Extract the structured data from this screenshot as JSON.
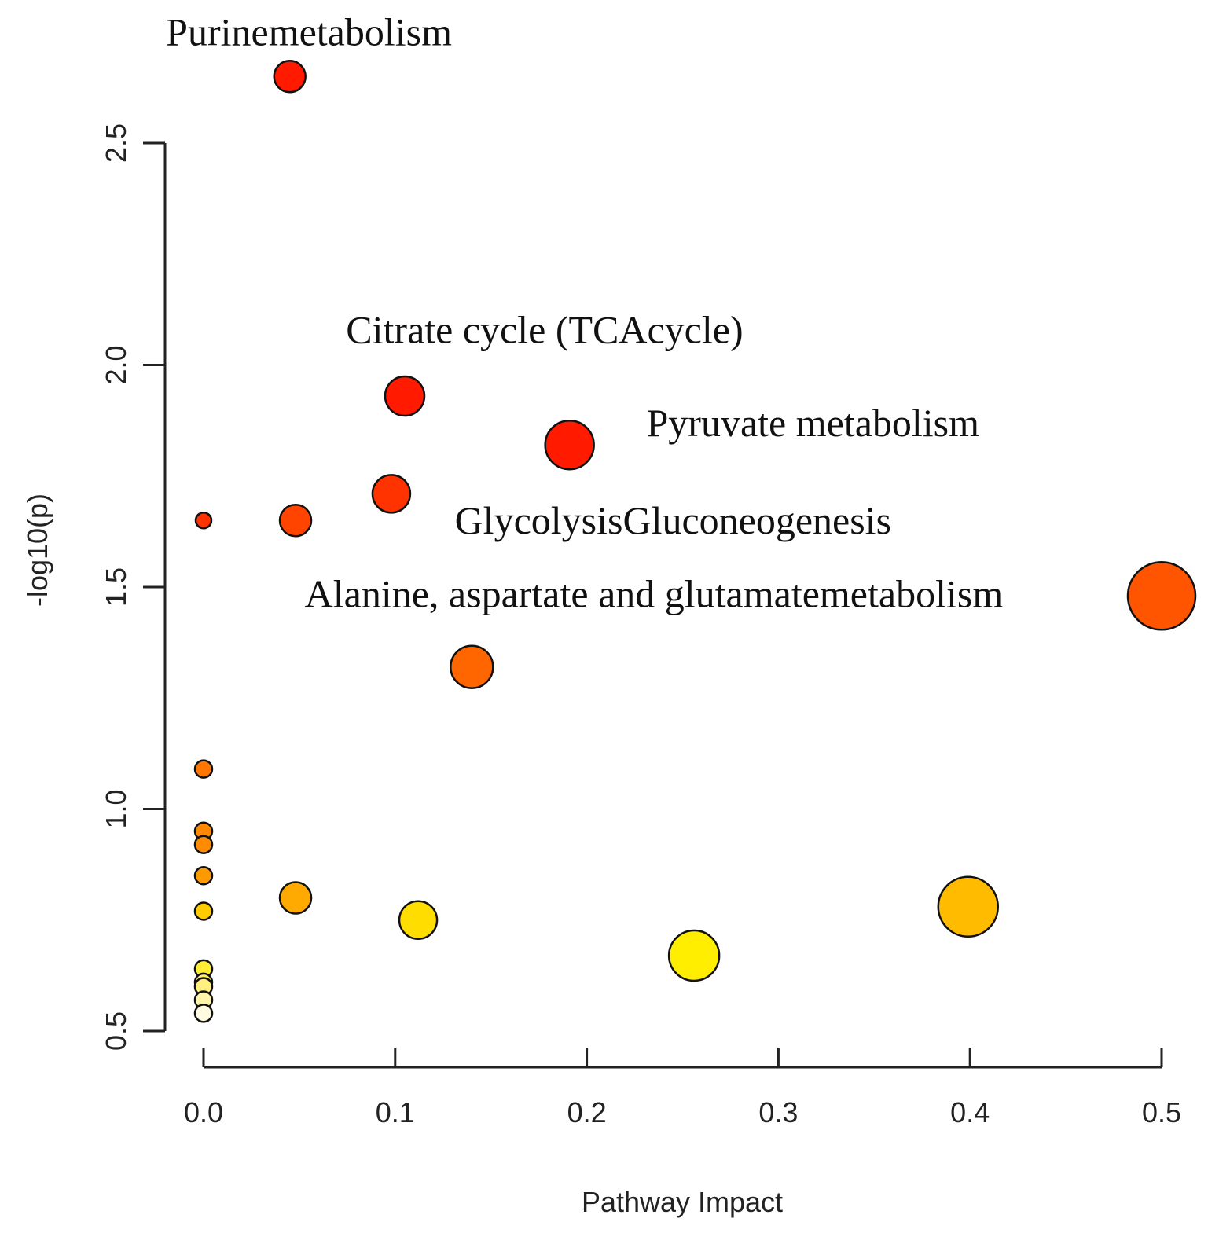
{
  "chart_data": {
    "type": "scatter",
    "title": "",
    "xlabel": "Pathway Impact",
    "ylabel": "-log10(p)",
    "xlim": [
      0.0,
      0.5
    ],
    "ylim": [
      0.5,
      2.5
    ],
    "x_ticks": [
      "0.0",
      "0.1",
      "0.2",
      "0.3",
      "0.4",
      "0.5"
    ],
    "y_ticks": [
      "0.5",
      "1.0",
      "1.5",
      "2.0",
      "2.5"
    ],
    "points": [
      {
        "x": 0.045,
        "y": 2.65,
        "color": "#ff1a00",
        "size": 40
      },
      {
        "x": 0.105,
        "y": 1.93,
        "color": "#ff1a00",
        "size": 50
      },
      {
        "x": 0.191,
        "y": 1.82,
        "color": "#ff1a00",
        "size": 62
      },
      {
        "x": 0.098,
        "y": 1.71,
        "color": "#ff3300",
        "size": 48
      },
      {
        "x": 0.048,
        "y": 1.65,
        "color": "#ff4400",
        "size": 40
      },
      {
        "x": 0.0,
        "y": 1.65,
        "color": "#ff3300",
        "size": 20
      },
      {
        "x": 0.5,
        "y": 1.48,
        "color": "#ff5500",
        "size": 86
      },
      {
        "x": 0.14,
        "y": 1.32,
        "color": "#ff6600",
        "size": 54
      },
      {
        "x": 0.0,
        "y": 1.09,
        "color": "#ff7700",
        "size": 22
      },
      {
        "x": 0.0,
        "y": 0.95,
        "color": "#ff8800",
        "size": 22
      },
      {
        "x": 0.0,
        "y": 0.92,
        "color": "#ff8c00",
        "size": 22
      },
      {
        "x": 0.0,
        "y": 0.85,
        "color": "#ff9900",
        "size": 22
      },
      {
        "x": 0.048,
        "y": 0.8,
        "color": "#ffaa00",
        "size": 40
      },
      {
        "x": 0.399,
        "y": 0.78,
        "color": "#ffbb00",
        "size": 76
      },
      {
        "x": 0.0,
        "y": 0.77,
        "color": "#ffcc00",
        "size": 22
      },
      {
        "x": 0.112,
        "y": 0.75,
        "color": "#ffdd00",
        "size": 48
      },
      {
        "x": 0.256,
        "y": 0.67,
        "color": "#ffee00",
        "size": 64
      },
      {
        "x": 0.0,
        "y": 0.64,
        "color": "#ffee33",
        "size": 22
      },
      {
        "x": 0.0,
        "y": 0.61,
        "color": "#ffee66",
        "size": 22
      },
      {
        "x": 0.0,
        "y": 0.6,
        "color": "#fff080",
        "size": 22
      },
      {
        "x": 0.0,
        "y": 0.57,
        "color": "#fff5aa",
        "size": 22
      },
      {
        "x": 0.0,
        "y": 0.54,
        "color": "#fffbe0",
        "size": 22
      }
    ],
    "annotations": [
      {
        "text": "Purinemetabolism",
        "x": 0.055,
        "y": 2.72
      },
      {
        "text": "Citrate cycle (TCAcycle)",
        "x": 0.178,
        "y": 2.05
      },
      {
        "text": "Pyruvate metabolism",
        "x": 0.318,
        "y": 1.84
      },
      {
        "text": "GlycolysisGluconeogenesis",
        "x": 0.245,
        "y": 1.62
      },
      {
        "text": "Alanine, aspartate and glutamatemetabolism",
        "x": 0.235,
        "y": 1.455
      }
    ]
  }
}
